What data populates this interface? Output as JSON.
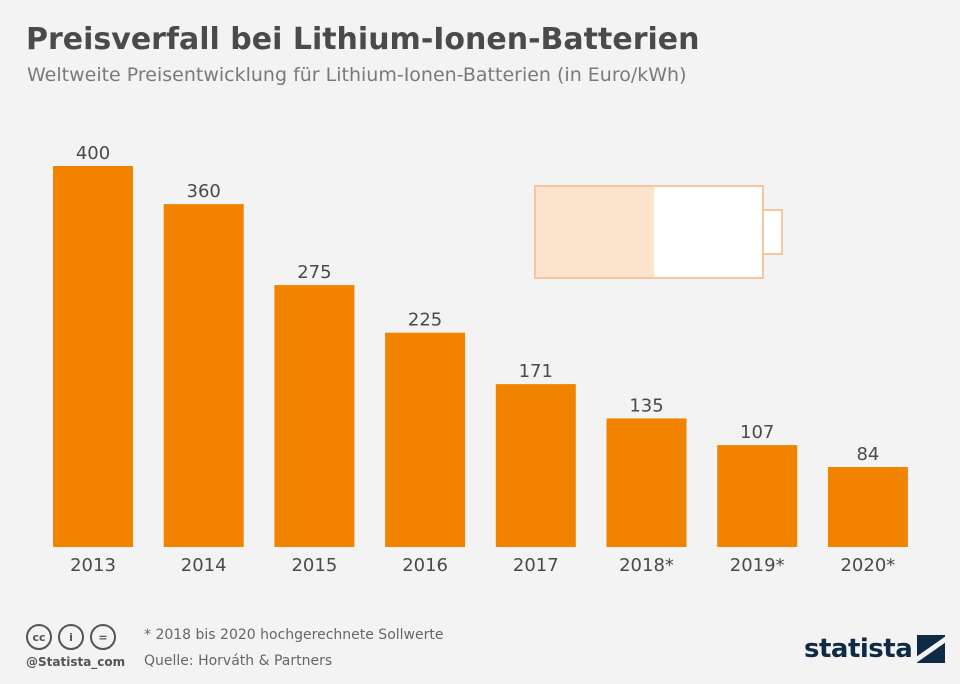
{
  "header": {
    "title": "Preisverfall bei Lithium-Ionen-Batterien",
    "subtitle": "Weltweite Preisentwicklung für Lithium-Ionen-Batterien (in Euro/kWh)"
  },
  "chart_data": {
    "type": "bar",
    "categories": [
      "2013",
      "2014",
      "2015",
      "2016",
      "2017",
      "2018*",
      "2019*",
      "2020*"
    ],
    "values": [
      400,
      360,
      275,
      225,
      171,
      135,
      107,
      84
    ],
    "ylim": [
      0,
      400
    ],
    "grid": false,
    "bar_color": "#f28300",
    "label_color": "#4a4a4a"
  },
  "battery_graphic": {
    "fill_fraction": 0.52,
    "outline_color": "#f5c79e",
    "fill_color": "#fbe3cd"
  },
  "footer": {
    "license_icons": [
      "cc-icon",
      "by-icon",
      "nd-icon"
    ],
    "license_glyphs": [
      "cc",
      "i",
      "="
    ],
    "handle": "@Statista_com",
    "note": "* 2018 bis 2020 hochgerechnete Sollwerte",
    "source": "Quelle: Horváth & Partners",
    "brand": "statista"
  }
}
